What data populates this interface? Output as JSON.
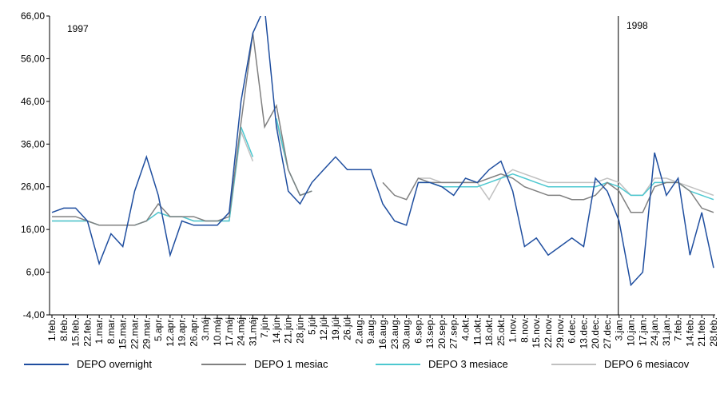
{
  "chart_data": {
    "type": "line",
    "annotations": [
      "1997",
      "1998"
    ],
    "categories": [
      "1.feb.",
      "8.feb.",
      "15.feb.",
      "22.feb.",
      "1.mar.",
      "8.mar.",
      "15.mar.",
      "22.mar.",
      "29.mar.",
      "5.apr.",
      "12.apr.",
      "19.apr.",
      "26.apr.",
      "3.máj",
      "10.máj",
      "17.máj",
      "24.máj",
      "31.máj",
      "7.jún",
      "14.jún",
      "21.jún",
      "28.jún",
      "5.júl",
      "12.júl",
      "19.júl",
      "26.júl",
      "2.aug.",
      "9.aug.",
      "16.aug.",
      "23.aug.",
      "30.aug.",
      "6.sep.",
      "13.sep.",
      "20.sep.",
      "27.sep.",
      "4.okt.",
      "11.okt.",
      "18.okt.",
      "25.okt.",
      "1.nov.",
      "8.nov.",
      "15.nov.",
      "22.nov.",
      "29.nov.",
      "6.dec.",
      "13.dec.",
      "20.dec.",
      "27.dec.",
      "3.jan.",
      "10.jan.",
      "17.jan.",
      "24.jan.",
      "31.jan.",
      "7.feb.",
      "14.feb.",
      "21.feb.",
      "28.feb."
    ],
    "series": [
      {
        "name": "DEPO overnight",
        "color": "#1f4e9f",
        "values": [
          20,
          21,
          21,
          18,
          8,
          15,
          12,
          25,
          33,
          24,
          10,
          18,
          17,
          17,
          17,
          20,
          46,
          62,
          68,
          40,
          25,
          22,
          27,
          30,
          33,
          30,
          30,
          30,
          22,
          18,
          17,
          27,
          27,
          26,
          24,
          28,
          27,
          30,
          32,
          25,
          12,
          14,
          10,
          12,
          14,
          12,
          28,
          25,
          18,
          3,
          6,
          34,
          24,
          28,
          10,
          20,
          7
        ]
      },
      {
        "name": "DEPO 1 mesiac",
        "color": "#808080",
        "values": [
          19,
          19,
          19,
          18,
          17,
          17,
          17,
          17,
          18,
          22,
          19,
          19,
          19,
          18,
          18,
          19,
          41,
          62,
          40,
          45,
          30,
          24,
          25,
          null,
          null,
          null,
          null,
          null,
          27,
          24,
          23,
          28,
          27,
          27,
          27,
          27,
          27,
          28,
          29,
          28,
          26,
          25,
          24,
          24,
          23,
          23,
          24,
          27,
          25,
          20,
          20,
          26,
          27,
          27,
          25,
          21,
          20
        ]
      },
      {
        "name": "DEPO 3 mesiace",
        "color": "#4dc8d0",
        "values": [
          18,
          18,
          18,
          18,
          17,
          17,
          17,
          17,
          18,
          20,
          19,
          19,
          18,
          18,
          18,
          18,
          40,
          33,
          null,
          42,
          30,
          24,
          25,
          null,
          null,
          null,
          null,
          null,
          null,
          null,
          null,
          27,
          27,
          26,
          26,
          26,
          26,
          27,
          28,
          29,
          28,
          27,
          26,
          26,
          26,
          26,
          26,
          27,
          26,
          24,
          24,
          27,
          27,
          27,
          25,
          24,
          23
        ]
      },
      {
        "name": "DEPO 6 mesiacov",
        "color": "#c0c0c0",
        "values": [
          18,
          18,
          18,
          18,
          17,
          17,
          17,
          17,
          18,
          20,
          19,
          19,
          18,
          18,
          18,
          18,
          39,
          32,
          null,
          41,
          30,
          24,
          25,
          null,
          null,
          null,
          null,
          null,
          null,
          null,
          null,
          28,
          28,
          27,
          27,
          27,
          27,
          23,
          28,
          30,
          29,
          28,
          27,
          27,
          27,
          27,
          27,
          28,
          27,
          24,
          24,
          28,
          28,
          27,
          26,
          25,
          24
        ]
      }
    ],
    "ylim": [
      -4,
      66
    ],
    "yticks": [
      {
        "value": 66,
        "label": "66,00"
      },
      {
        "value": 56,
        "label": "56,00"
      },
      {
        "value": 46,
        "label": "46,00"
      },
      {
        "value": 36,
        "label": "36,00"
      },
      {
        "value": 26,
        "label": "26,00"
      },
      {
        "value": 16,
        "label": "16,00"
      },
      {
        "value": 6,
        "label": "6,00"
      },
      {
        "value": -4,
        "label": "-4,00"
      }
    ],
    "legend": "bottom"
  }
}
